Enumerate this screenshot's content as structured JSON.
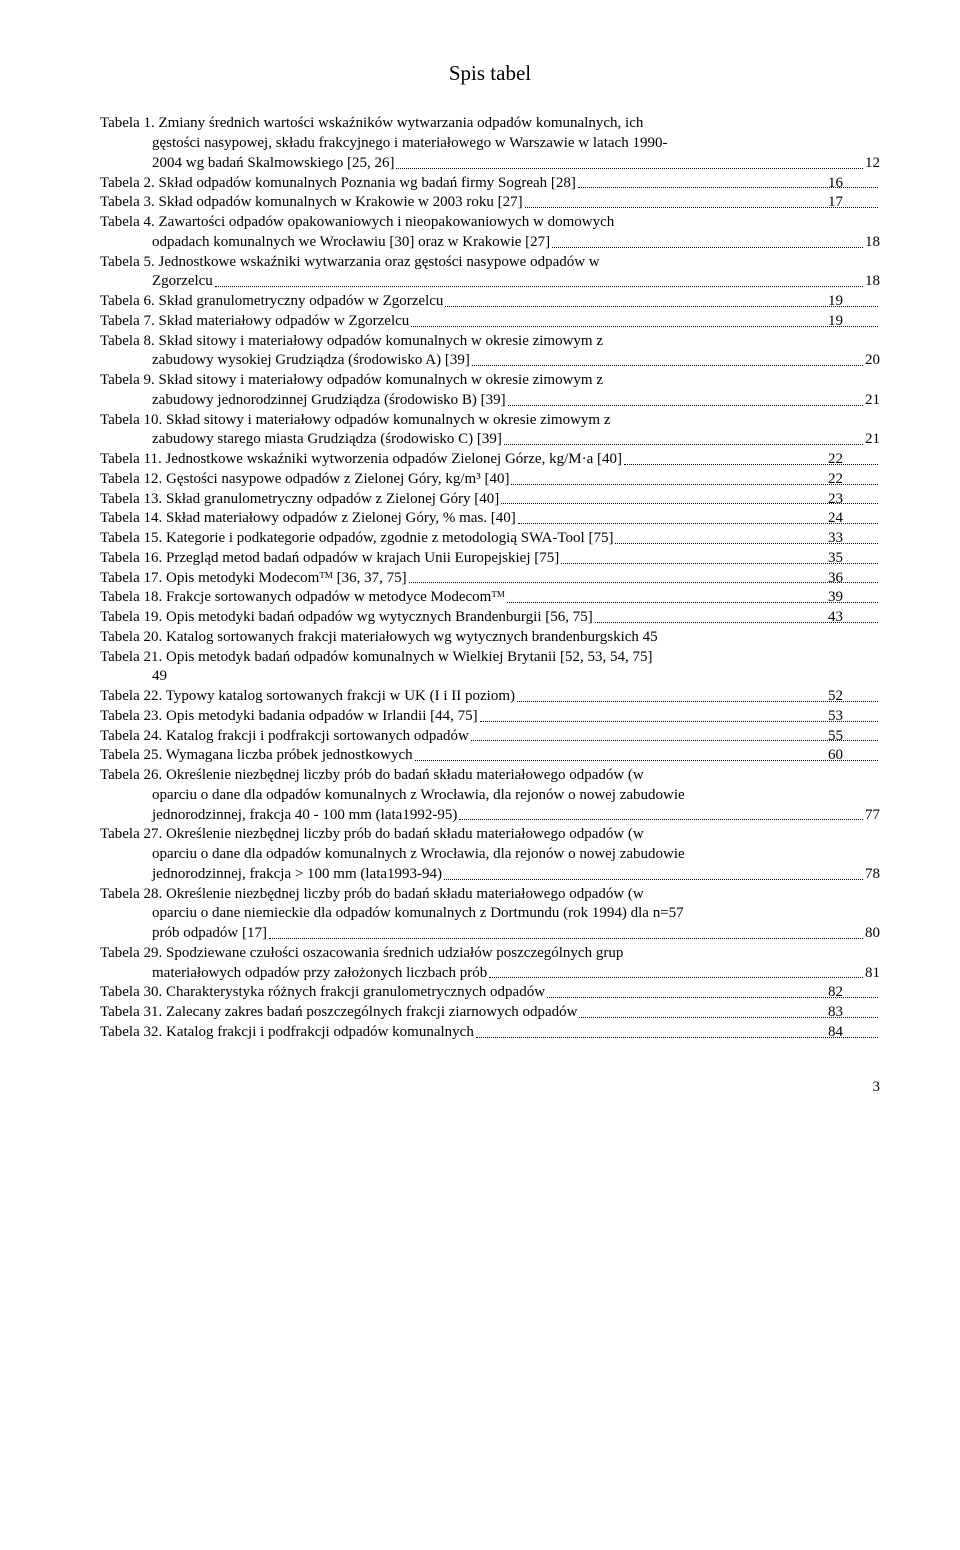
{
  "title": "Spis tabel",
  "page_number": "3",
  "entries": [
    {
      "type": "multi",
      "rows": [
        {
          "text": "Tabela 1.   Zmiany średnich wartości wskaźników wytwarzania odpadów komunalnych, ich"
        },
        {
          "text": "gęstości nasypowej, składu frakcyjnego i materiałowego w Warszawie w latach 1990-"
        },
        {
          "text": "2004 wg badań Skalmowskiego [25, 26]",
          "page": "12"
        }
      ]
    },
    {
      "type": "single",
      "text": "Tabela 2.   Skład odpadów komunalnych Poznania wg badań firmy Sogreah [28]",
      "page": "16"
    },
    {
      "type": "single",
      "text": "Tabela 3.   Skład odpadów komunalnych w Krakowie w 2003 roku [27]",
      "page": "17"
    },
    {
      "type": "multi",
      "rows": [
        {
          "text": "Tabela 4.   Zawartości odpadów opakowaniowych i nieopakowaniowych w domowych"
        },
        {
          "text": "odpadach komunalnych we Wrocławiu [30] oraz w Krakowie [27]",
          "page": "18"
        }
      ]
    },
    {
      "type": "multi",
      "rows": [
        {
          "text": "Tabela 5.   Jednostkowe wskaźniki wytwarzania oraz gęstości nasypowe odpadów w"
        },
        {
          "text": "Zgorzelcu",
          "page": "18"
        }
      ]
    },
    {
      "type": "single",
      "text": "Tabela 6.   Skład granulometryczny odpadów w Zgorzelcu",
      "page": "19"
    },
    {
      "type": "single",
      "text": "Tabela 7.   Skład materiałowy odpadów w Zgorzelcu",
      "page": "19"
    },
    {
      "type": "multi",
      "rows": [
        {
          "text": "Tabela 8.   Skład sitowy i materiałowy odpadów komunalnych w okresie zimowym z"
        },
        {
          "text": "zabudowy wysokiej Grudziądza (środowisko A) [39]",
          "page": "20"
        }
      ]
    },
    {
      "type": "multi",
      "rows": [
        {
          "text": "Tabela 9.   Skład sitowy i materiałowy odpadów komunalnych w okresie zimowym z"
        },
        {
          "text": "zabudowy jednorodzinnej Grudziądza (środowisko B) [39]",
          "page": "21"
        }
      ]
    },
    {
      "type": "multi",
      "rows": [
        {
          "text": "Tabela 10.  Skład sitowy i materiałowy odpadów komunalnych w okresie zimowym z"
        },
        {
          "text": "zabudowy starego miasta Grudziądza (środowisko C) [39]",
          "page": "21"
        }
      ]
    },
    {
      "type": "single",
      "text": "Tabela 11.  Jednostkowe wskaźniki wytworzenia odpadów Zielonej Górze, kg/M·a [40]",
      "page": "22"
    },
    {
      "type": "single",
      "text": "Tabela 12.  Gęstości nasypowe odpadów z Zielonej Góry, kg/m³ [40]",
      "page": "22"
    },
    {
      "type": "single",
      "text": "Tabela 13.  Skład granulometryczny odpadów z Zielonej Góry [40]",
      "page": "23"
    },
    {
      "type": "single",
      "text": "Tabela 14.  Skład materiałowy odpadów z Zielonej Góry, % mas. [40]",
      "page": "24"
    },
    {
      "type": "single",
      "text": "Tabela 15.  Kategorie i podkategorie odpadów, zgodnie z metodologią SWA-Tool [75]",
      "page": "33"
    },
    {
      "type": "single",
      "text": "Tabela 16.  Przegląd metod badań odpadów w krajach Unii Europejskiej [75]",
      "page": "35"
    },
    {
      "type": "single",
      "text": "Tabela 17.  Opis metodyki Modecomᵀᴹ [36, 37, 75]",
      "page": "36"
    },
    {
      "type": "single",
      "text": "Tabela 18.  Frakcje sortowanych odpadów w metodyce Modecomᵀᴹ",
      "page": "39"
    },
    {
      "type": "single",
      "text": "Tabela 19.  Opis metodyki badań odpadów wg wytycznych Brandenburgii [56, 75]",
      "page": "43"
    },
    {
      "type": "single",
      "text": "Tabela 20.  Katalog sortowanych frakcji materiałowych wg wytycznych brandenburgskich 45",
      "page": null
    },
    {
      "type": "multi",
      "rows": [
        {
          "text": "Tabela 21.  Opis metodyk badań odpadów komunalnych w Wielkiej Brytanii [52, 53, 54, 75]"
        },
        {
          "text": "49",
          "page": null
        }
      ]
    },
    {
      "type": "single",
      "text": "Tabela 22.  Typowy katalog sortowanych frakcji w UK (I i II poziom)",
      "page": "52"
    },
    {
      "type": "single",
      "text": "Tabela 23.  Opis metodyki badania odpadów w Irlandii [44, 75]",
      "page": "53"
    },
    {
      "type": "single",
      "text": "Tabela 24.  Katalog frakcji i podfrakcji sortowanych odpadów",
      "page": "55"
    },
    {
      "type": "single",
      "text": "Tabela 25.  Wymagana liczba próbek jednostkowych",
      "page": "60"
    },
    {
      "type": "multi",
      "rows": [
        {
          "text": "Tabela 26.  Określenie niezbędnej liczby prób do badań składu materiałowego odpadów (w"
        },
        {
          "text": "oparciu o dane dla odpadów komunalnych z Wrocławia, dla rejonów o nowej zabudowie"
        },
        {
          "text": "jednorodzinnej, frakcja 40 - 100 mm (lata1992-95)",
          "page": "77"
        }
      ]
    },
    {
      "type": "multi",
      "rows": [
        {
          "text": "Tabela 27.  Określenie niezbędnej liczby prób do badań składu materiałowego odpadów (w"
        },
        {
          "text": "oparciu o dane dla odpadów komunalnych z Wrocławia, dla rejonów o nowej zabudowie"
        },
        {
          "text": "jednorodzinnej, frakcja > 100 mm (lata1993-94)",
          "page": "78"
        }
      ]
    },
    {
      "type": "multi",
      "rows": [
        {
          "text": "Tabela 28.  Określenie niezbędnej liczby prób do badań składu materiałowego odpadów (w"
        },
        {
          "text": "oparciu o dane niemieckie dla odpadów komunalnych z Dortmundu (rok 1994) dla n=57"
        },
        {
          "text": "prób odpadów [17]",
          "page": "80"
        }
      ]
    },
    {
      "type": "multi",
      "rows": [
        {
          "text": "Tabela 29.  Spodziewane czułości oszacowania średnich udziałów poszczególnych grup"
        },
        {
          "text": "materiałowych odpadów przy założonych liczbach prób",
          "page": "81"
        }
      ]
    },
    {
      "type": "single",
      "text": "Tabela 30.  Charakterystyka różnych frakcji granulometrycznych odpadów",
      "page": "82"
    },
    {
      "type": "single",
      "text": "Tabela 31.  Zalecany zakres badań poszczególnych frakcji ziarnowych odpadów",
      "page": "83"
    },
    {
      "type": "single",
      "text": "Tabela 32.  Katalog frakcji i podfrakcji odpadów komunalnych",
      "page": "84"
    }
  ]
}
